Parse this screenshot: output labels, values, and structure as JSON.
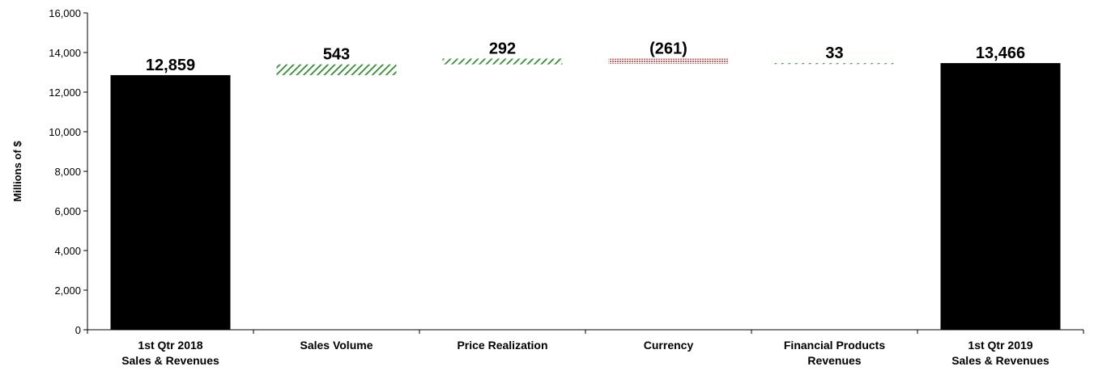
{
  "chart_data": {
    "type": "bar",
    "subtype": "waterfall",
    "ylabel": "Millions of $",
    "ylim": [
      0,
      16000
    ],
    "yticks": [
      0,
      2000,
      4000,
      6000,
      8000,
      10000,
      12000,
      14000,
      16000
    ],
    "ytick_labels": [
      "0",
      "2,000",
      "4,000",
      "6,000",
      "8,000",
      "10,000",
      "12,000",
      "14,000",
      "16,000"
    ],
    "grid": false,
    "legend": "none",
    "categories": [
      [
        "1st Qtr 2018",
        "Sales & Revenues"
      ],
      [
        "Sales Volume"
      ],
      [
        "Price Realization"
      ],
      [
        "Currency"
      ],
      [
        "Financial Products",
        "Revenues"
      ],
      [
        "1st Qtr 2019",
        "Sales & Revenues"
      ]
    ],
    "bars": [
      {
        "kind": "total",
        "start": 0,
        "end": 12859,
        "label": "12,859",
        "color": "#000000"
      },
      {
        "kind": "increase",
        "start": 12859,
        "end": 13402,
        "label": "543",
        "color": "#2e8b2e"
      },
      {
        "kind": "increase",
        "start": 13402,
        "end": 13694,
        "label": "292",
        "color": "#2e8b2e"
      },
      {
        "kind": "decrease",
        "start": 13694,
        "end": 13433,
        "label": "(261)",
        "color": "#e06060"
      },
      {
        "kind": "increase",
        "start": 13433,
        "end": 13466,
        "label": "33",
        "color": "#2e8b2e"
      },
      {
        "kind": "total",
        "start": 0,
        "end": 13466,
        "label": "13,466",
        "color": "#000000"
      }
    ]
  }
}
